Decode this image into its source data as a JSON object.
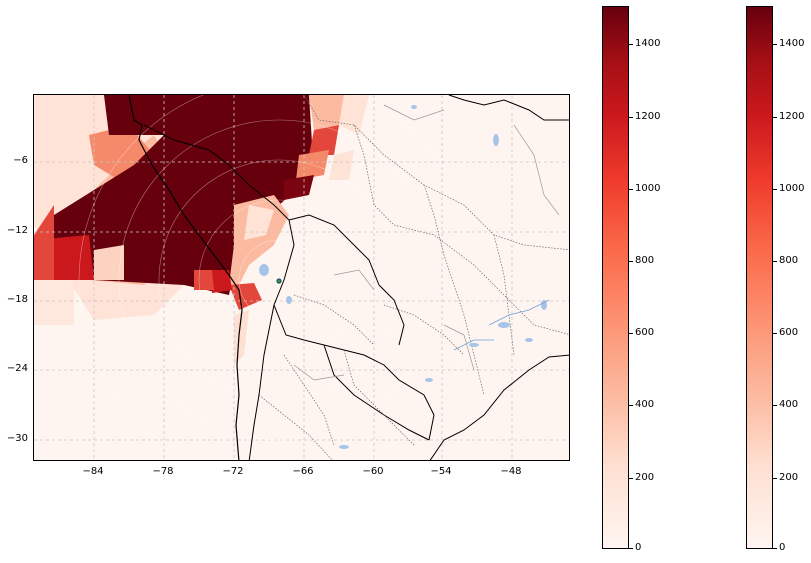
{
  "map": {
    "y_ticks": [
      "−6",
      "−12",
      "−18",
      "−24",
      "−30"
    ],
    "x_ticks": [
      "−84",
      "−78",
      "−72",
      "−66",
      "−60",
      "−54",
      "−48"
    ],
    "marker_color": "#1f4e79"
  },
  "colorbar_left": {
    "ticks": [
      "0",
      "200",
      "400",
      "600",
      "800",
      "1000",
      "1200",
      "1400"
    ]
  },
  "colorbar_right": {
    "ticks": [
      "0",
      "200",
      "400",
      "600",
      "800",
      "1000",
      "1200",
      "1400"
    ]
  },
  "colors": {
    "dark_red": "#67000d",
    "mid_red": "#e3463a",
    "light_red": "#fcbba1",
    "pale": "#fff5f0",
    "water": "#a6c4e8"
  }
}
